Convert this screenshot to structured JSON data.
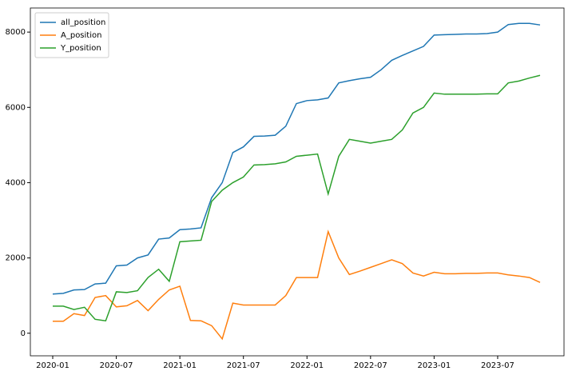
{
  "chart_data": {
    "type": "line",
    "x": [
      "2020-01",
      "2020-02",
      "2020-03",
      "2020-04",
      "2020-05",
      "2020-06",
      "2020-07",
      "2020-08",
      "2020-09",
      "2020-10",
      "2020-11",
      "2020-12",
      "2021-01",
      "2021-02",
      "2021-03",
      "2021-04",
      "2021-05",
      "2021-06",
      "2021-07",
      "2021-08",
      "2021-09",
      "2021-10",
      "2021-11",
      "2021-12",
      "2022-01",
      "2022-02",
      "2022-03",
      "2022-04",
      "2022-05",
      "2022-06",
      "2022-07",
      "2022-08",
      "2022-09",
      "2022-10",
      "2022-11",
      "2022-12",
      "2023-01",
      "2023-02",
      "2023-03",
      "2023-04",
      "2023-05",
      "2023-06",
      "2023-07",
      "2023-08",
      "2023-09",
      "2023-10",
      "2023-11"
    ],
    "series": [
      {
        "name": "all_position",
        "color": "#1f77b4",
        "values": [
          1040,
          1060,
          1150,
          1160,
          1310,
          1330,
          1790,
          1810,
          2000,
          2080,
          2500,
          2530,
          2750,
          2770,
          2800,
          3600,
          4000,
          4800,
          4950,
          5230,
          5240,
          5260,
          5500,
          6100,
          6180,
          6200,
          6250,
          6650,
          6710,
          6760,
          6800,
          7000,
          7250,
          7380,
          7500,
          7620,
          7920,
          7930,
          7940,
          7950,
          7950,
          7960,
          8000,
          8200,
          8230,
          8230,
          8190
        ]
      },
      {
        "name": "A_position",
        "color": "#ff7f0e",
        "values": [
          320,
          320,
          520,
          470,
          950,
          1000,
          700,
          730,
          870,
          600,
          900,
          1150,
          1250,
          340,
          330,
          200,
          -150,
          800,
          750,
          750,
          750,
          750,
          1000,
          1480,
          1480,
          1480,
          2700,
          2000,
          1560,
          1650,
          1750,
          1850,
          1950,
          1850,
          1600,
          1520,
          1620,
          1580,
          1580,
          1590,
          1590,
          1600,
          1600,
          1550,
          1520,
          1480,
          1350
        ]
      },
      {
        "name": "Y_position",
        "color": "#2ca02c",
        "values": [
          720,
          720,
          630,
          690,
          370,
          330,
          1100,
          1080,
          1130,
          1480,
          1700,
          1380,
          2430,
          2450,
          2470,
          3500,
          3800,
          4000,
          4150,
          4470,
          4480,
          4500,
          4550,
          4700,
          4730,
          4760,
          3700,
          4700,
          5150,
          5100,
          5050,
          5100,
          5150,
          5400,
          5850,
          6000,
          6380,
          6350,
          6350,
          6350,
          6350,
          6360,
          6360,
          6650,
          6700,
          6780,
          6850
        ]
      }
    ],
    "ylim": [
      -600,
      8640
    ],
    "yticks": [
      0,
      2000,
      4000,
      6000,
      8000
    ],
    "legend": "upper left"
  }
}
